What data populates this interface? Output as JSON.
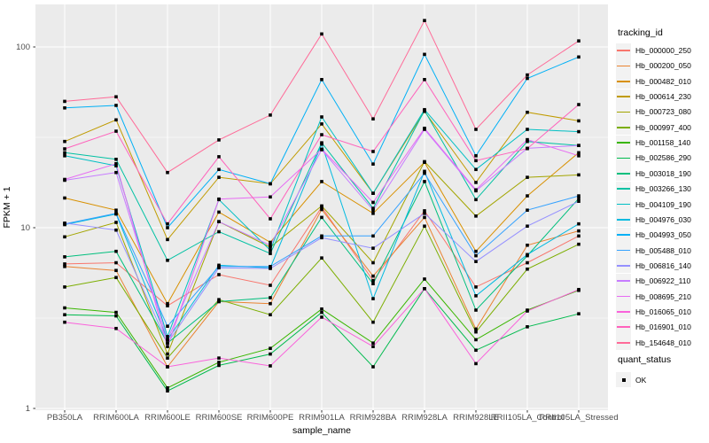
{
  "figure": {
    "panel_background": "#EBEBEB",
    "gridline_color": "#FFFFFF",
    "tick_color": "#333333",
    "point_color": "#000000"
  },
  "axes": {
    "y": {
      "title": "FPKM + 1",
      "scale": "log10",
      "major_ticks": [
        1,
        10,
        100
      ],
      "tick_labels": [
        "1",
        "10",
        "100"
      ],
      "minor_ticks": [
        3.1623,
        31.623
      ]
    },
    "x": {
      "title": "sample_name"
    }
  },
  "legend": {
    "tracking_title": "tracking_id",
    "quant_title": "quant_status",
    "quant_items": [
      {
        "label": "OK",
        "marker": "black-square"
      }
    ]
  },
  "chart_data": {
    "type": "line",
    "x_label": "sample_name",
    "y_label": "FPKM + 1",
    "y_scale": "log10",
    "ylim": [
      1,
      172
    ],
    "grid": true,
    "legend_position": "right",
    "categories": [
      "PB350LA",
      "RRIM600LA",
      "RRIM600LE",
      "RRIM600SE",
      "RRIM600PE",
      "RRIM901LA",
      "RRIM928BA",
      "RRIM928LA",
      "RRIM928LE",
      "RRII105LA_Control",
      "RRII105LA_Stressed"
    ],
    "series": [
      {
        "name": "Hb_000000_250",
        "color": "#F8766D",
        "values": [
          6.3,
          6.4,
          3.7,
          5.5,
          4.8,
          13.0,
          5.1,
          12.4,
          4.7,
          6.4,
          9.0
        ]
      },
      {
        "name": "Hb_000200_050",
        "color": "#EA8331",
        "values": [
          6.1,
          5.8,
          1.7,
          3.9,
          3.8,
          12.6,
          5.4,
          11.4,
          2.75,
          8.0,
          9.6
        ]
      },
      {
        "name": "Hb_000482_010",
        "color": "#D89000",
        "values": [
          14.6,
          12.5,
          3.8,
          12.2,
          8.3,
          18.0,
          12.0,
          23.0,
          7.4,
          15.0,
          26.0
        ]
      },
      {
        "name": "Hb_000614_230",
        "color": "#C09B00",
        "values": [
          30.0,
          39.5,
          8.6,
          19.0,
          17.5,
          37.5,
          15.5,
          44.0,
          17.8,
          43.5,
          39.0
        ]
      },
      {
        "name": "Hb_000723_080",
        "color": "#A3A500",
        "values": [
          8.9,
          10.7,
          2.0,
          10.8,
          7.8,
          13.2,
          6.4,
          23.2,
          11.6,
          19.0,
          19.6
        ]
      },
      {
        "name": "Hb_000997_400",
        "color": "#7CAE00",
        "values": [
          4.7,
          5.3,
          1.9,
          4.0,
          3.3,
          6.8,
          3.0,
          10.2,
          2.65,
          5.9,
          8.1
        ]
      },
      {
        "name": "Hb_001158_140",
        "color": "#39B600",
        "values": [
          3.6,
          3.4,
          1.3,
          1.8,
          2.15,
          3.55,
          2.3,
          5.2,
          2.4,
          3.5,
          4.5
        ]
      },
      {
        "name": "Hb_002586_290",
        "color": "#00BB4E",
        "values": [
          3.3,
          3.25,
          1.25,
          1.73,
          2.0,
          3.4,
          1.7,
          4.6,
          2.1,
          2.83,
          3.34
        ]
      },
      {
        "name": "Hb_003018_190",
        "color": "#00BF7D",
        "values": [
          6.9,
          7.4,
          2.3,
          3.9,
          4.1,
          11.4,
          4.9,
          18.0,
          3.5,
          7.0,
          14.5
        ]
      },
      {
        "name": "Hb_003266_130",
        "color": "#00C1A3",
        "values": [
          26.0,
          23.9,
          6.6,
          9.5,
          7.2,
          29.5,
          12.8,
          44.5,
          14.3,
          30.0,
          28.5
        ]
      },
      {
        "name": "Hb_004109_190",
        "color": "#00BFC4",
        "values": [
          25.0,
          22.0,
          2.5,
          14.3,
          7.5,
          41.0,
          15.5,
          45.0,
          21.0,
          35.0,
          34.0
        ]
      },
      {
        "name": "Hb_004976_030",
        "color": "#00BAE0",
        "values": [
          10.4,
          11.9,
          2.4,
          6.2,
          6.0,
          29.0,
          4.05,
          20.5,
          4.2,
          7.1,
          10.5
        ]
      },
      {
        "name": "Hb_004993_050",
        "color": "#00B0F6",
        "values": [
          46.0,
          47.5,
          10.0,
          21.0,
          17.5,
          66.0,
          22.5,
          91.0,
          25.0,
          67.0,
          88.0
        ]
      },
      {
        "name": "Hb_005488_010",
        "color": "#35A2FF",
        "values": [
          10.5,
          12.0,
          2.85,
          6.1,
          6.1,
          9.0,
          9.0,
          20.0,
          7.0,
          12.5,
          15.0
        ]
      },
      {
        "name": "Hb_006816_140",
        "color": "#9590FF",
        "values": [
          10.6,
          9.7,
          2.3,
          6.0,
          5.95,
          8.8,
          7.7,
          12.0,
          6.5,
          10.2,
          14.0
        ]
      },
      {
        "name": "Hb_006922_110",
        "color": "#C77CFF",
        "values": [
          18.3,
          20.2,
          2.4,
          10.8,
          8.0,
          27.0,
          12.5,
          35.0,
          16.0,
          27.5,
          28.5
        ]
      },
      {
        "name": "Hb_008695_210",
        "color": "#E76BF3",
        "values": [
          18.5,
          22.6,
          2.2,
          14.4,
          14.8,
          27.2,
          13.8,
          35.5,
          16.2,
          30.7,
          25.0
        ]
      },
      {
        "name": "Hb_016065_010",
        "color": "#FA62DB",
        "values": [
          3.0,
          2.77,
          1.7,
          1.9,
          1.72,
          3.2,
          2.2,
          4.6,
          1.77,
          3.46,
          4.55
        ]
      },
      {
        "name": "Hb_016901_010",
        "color": "#FF62BC",
        "values": [
          27.3,
          34.2,
          10.5,
          24.7,
          11.2,
          32.7,
          26.4,
          66.0,
          23.5,
          27.4,
          48.0
        ]
      },
      {
        "name": "Hb_154648_010",
        "color": "#FF6A98",
        "values": [
          50.0,
          53.0,
          20.2,
          30.6,
          42.0,
          118.0,
          40.0,
          140.0,
          35.0,
          70.0,
          108.0
        ]
      }
    ]
  }
}
